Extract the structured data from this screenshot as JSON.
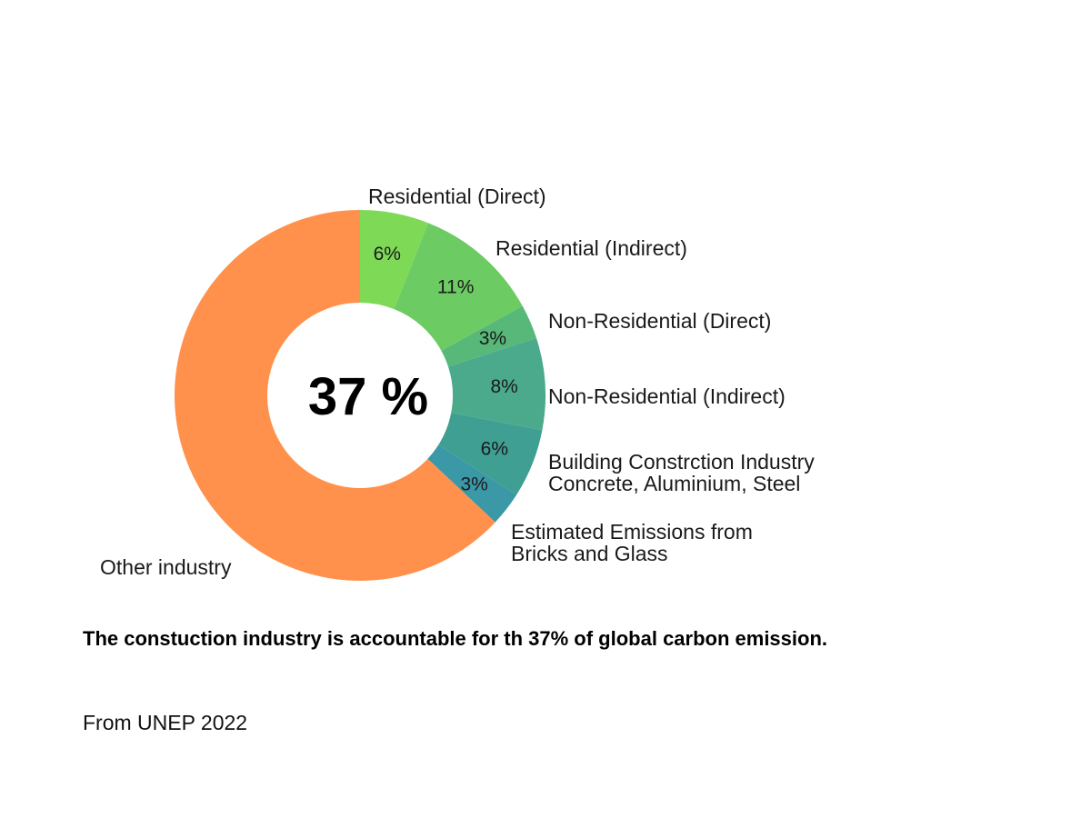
{
  "chart_data": {
    "type": "pie",
    "style": "donut",
    "center_label": "37 %",
    "slices": [
      {
        "name": "Residential (Direct)",
        "value": 6,
        "label": "6%",
        "color": "#7ED957"
      },
      {
        "name": "Residential (Indirect)",
        "value": 11,
        "label": "11%",
        "color": "#6DCB63"
      },
      {
        "name": "Non-Residential (Direct)",
        "value": 3,
        "label": "3%",
        "color": "#57B879"
      },
      {
        "name": "Non-Residential (Indirect)",
        "value": 8,
        "label": "8%",
        "color": "#4BAA8C"
      },
      {
        "name": "Building Constrction Industry Concrete, Aluminium, Steel",
        "lines": [
          "Building Constrction Industry",
          "Concrete, Aluminium, Steel"
        ],
        "value": 6,
        "label": "6%",
        "color": "#3F9F92"
      },
      {
        "name": "Estimated Emissions from Bricks and Glass",
        "lines": [
          "Estimated Emissions from",
          "Bricks and Glass"
        ],
        "value": 3,
        "label": "3%",
        "color": "#3B98A6"
      },
      {
        "name": "Other  industry",
        "value": 63,
        "label": "",
        "color": "#FF914D"
      }
    ]
  },
  "caption": "The constuction industry is  accountable for th 37% of global carbon emission.",
  "source": "From UNEP 2022"
}
